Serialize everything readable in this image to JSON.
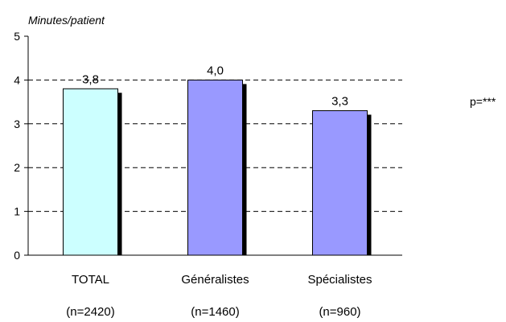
{
  "chart_data": {
    "type": "bar",
    "ylabel": "Minutes/patient",
    "ylim": [
      0,
      5
    ],
    "yticks": [
      0,
      1,
      2,
      3,
      4,
      5
    ],
    "grid": "dashed horizontal",
    "categories": [
      "TOTAL",
      "Généralistes",
      "Spécialistes"
    ],
    "sample_sizes": [
      "(n=2420)",
      "(n=1460)",
      "(n=960)"
    ],
    "values": [
      3.8,
      4.0,
      3.3
    ],
    "value_labels": [
      "3,8",
      "4,0",
      "3,3"
    ],
    "bar_colors": [
      "#ccffff",
      "#9999ff",
      "#9999ff"
    ],
    "significance": "p=***"
  }
}
